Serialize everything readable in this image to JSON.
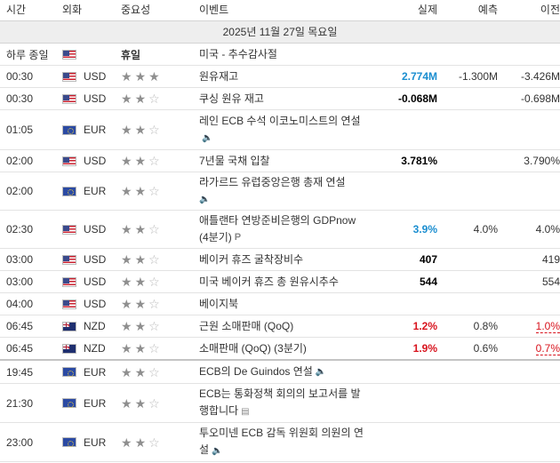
{
  "header": {
    "time": "시간",
    "currency": "외화",
    "importance": "중요성",
    "event": "이벤트",
    "actual": "실제",
    "forecast": "예측",
    "previous": "이전"
  },
  "date_label": "2025년 11월 27일 목요일",
  "holiday_label": "휴일",
  "rows": [
    {
      "time": "하루 종일",
      "flag": "us",
      "currency": "",
      "holiday": true,
      "event": "미국 - 추수감사절",
      "actual": "",
      "forecast": "",
      "previous": ""
    },
    {
      "time": "00:30",
      "flag": "us",
      "currency": "USD",
      "stars": 3,
      "event": "원유재고",
      "actual": "2.774M",
      "forecast": "-1.300M",
      "previous": "-3.426M"
    },
    {
      "time": "00:30",
      "flag": "us",
      "currency": "USD",
      "stars": 2,
      "event": "쿠싱 원유 재고",
      "actual": "-0.068M",
      "forecast": "",
      "previous": "-0.698M"
    },
    {
      "time": "01:05",
      "flag": "eu",
      "currency": "EUR",
      "stars": 2,
      "event": "레인 ECB 수석 이코노미스트의 연설",
      "actual": "",
      "forecast": "",
      "previous": ""
    },
    {
      "time": "02:00",
      "flag": "us",
      "currency": "USD",
      "stars": 2,
      "event": "7년물 국채 입찰",
      "actual": "3.781%",
      "forecast": "",
      "previous": "3.790%"
    },
    {
      "time": "02:00",
      "flag": "eu",
      "currency": "EUR",
      "stars": 2,
      "event": "라가르드 유럽중앙은행 총재 연설",
      "actual": "",
      "forecast": "",
      "previous": ""
    },
    {
      "time": "02:30",
      "flag": "us",
      "currency": "USD",
      "stars": 2,
      "event": "애틀랜타 연방준비은행의 GDPnow (4분기)",
      "actual": "3.9%",
      "forecast": "4.0%",
      "previous": "4.0%"
    },
    {
      "time": "03:00",
      "flag": "us",
      "currency": "USD",
      "stars": 2,
      "event": "베이커 휴즈 굴착장비수",
      "actual": "407",
      "forecast": "",
      "previous": "419"
    },
    {
      "time": "03:00",
      "flag": "us",
      "currency": "USD",
      "stars": 2,
      "event": "미국 베이커 휴즈 총 원유시추수",
      "actual": "544",
      "forecast": "",
      "previous": "554"
    },
    {
      "time": "04:00",
      "flag": "us",
      "currency": "USD",
      "stars": 2,
      "event": "베이지북",
      "actual": "",
      "forecast": "",
      "previous": ""
    },
    {
      "time": "06:45",
      "flag": "nz",
      "currency": "NZD",
      "stars": 2,
      "event": "근원 소매판매 (QoQ)",
      "actual": "1.2%",
      "forecast": "0.8%",
      "previous": "1.0%"
    },
    {
      "time": "06:45",
      "flag": "nz",
      "currency": "NZD",
      "stars": 2,
      "event": "소매판매 (QoQ) (3분기)",
      "actual": "1.9%",
      "forecast": "0.6%",
      "previous": "0.7%"
    },
    {
      "time": "19:45",
      "flag": "eu",
      "currency": "EUR",
      "stars": 2,
      "event": "ECB의 De Guindos 연설",
      "actual": "",
      "forecast": "",
      "previous": ""
    },
    {
      "time": "21:30",
      "flag": "eu",
      "currency": "EUR",
      "stars": 2,
      "event": "ECB는 통화정책 회의의 보고서를 발행합니다",
      "actual": "",
      "forecast": "",
      "previous": ""
    },
    {
      "time": "23:00",
      "flag": "eu",
      "currency": "EUR",
      "stars": 2,
      "event": "투오미넨 ECB 감독 위원회 의원의 연설",
      "actual": "",
      "forecast": "",
      "previous": ""
    }
  ],
  "icons": {
    "speech": "speaker-icon",
    "preliminary": "preliminary-icon",
    "report": "document-icon"
  }
}
